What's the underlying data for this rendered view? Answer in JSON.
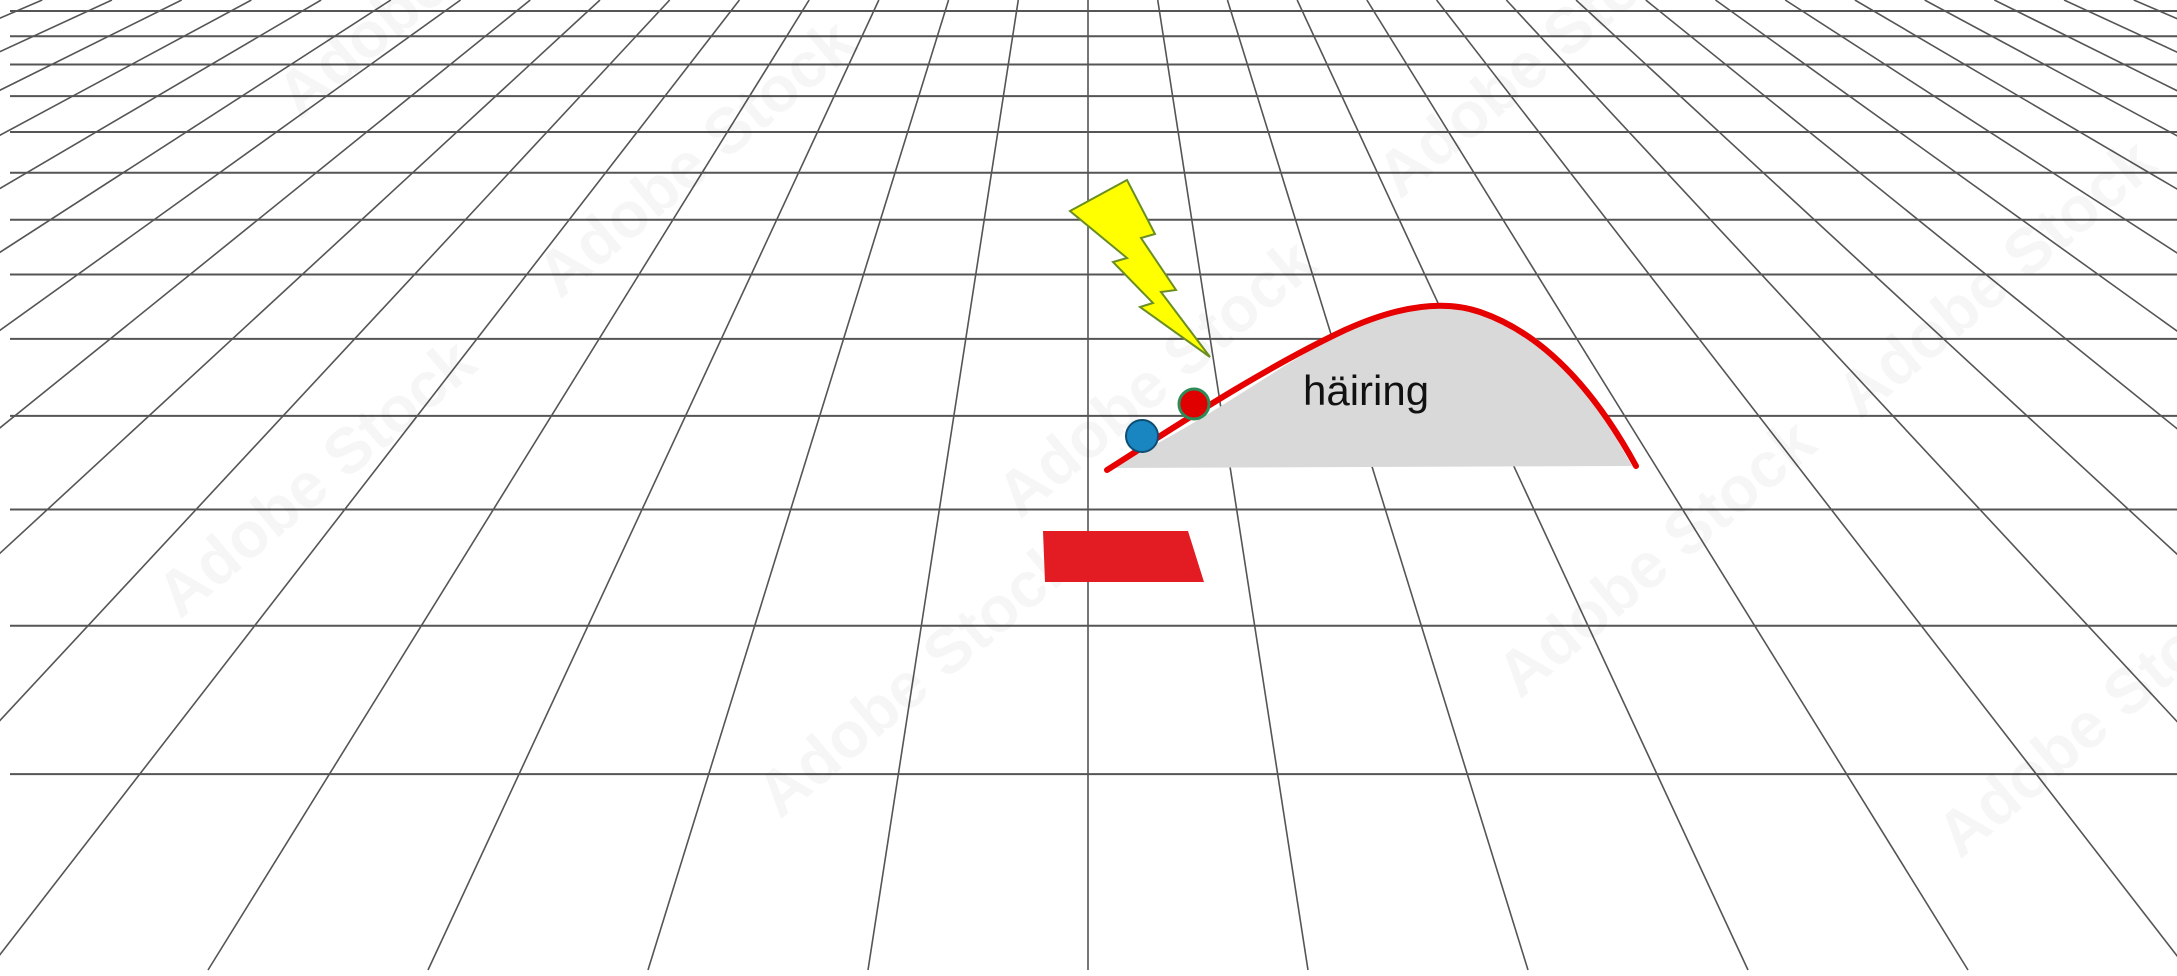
{
  "diagram": {
    "label": "häiring",
    "watermark": "Adobe Stock",
    "colors": {
      "background": "#ffffff",
      "grid": "#555555",
      "disturbance_fill": "#d9d9d9",
      "curve": "#e60000",
      "lightning_fill": "#ffff00",
      "lightning_stroke": "#6b8e23",
      "blue_dot": "#1a86c1",
      "red_dot": "#e00000",
      "red_dot_stroke": "#2e8b57",
      "red_block": "#e31b23"
    }
  }
}
